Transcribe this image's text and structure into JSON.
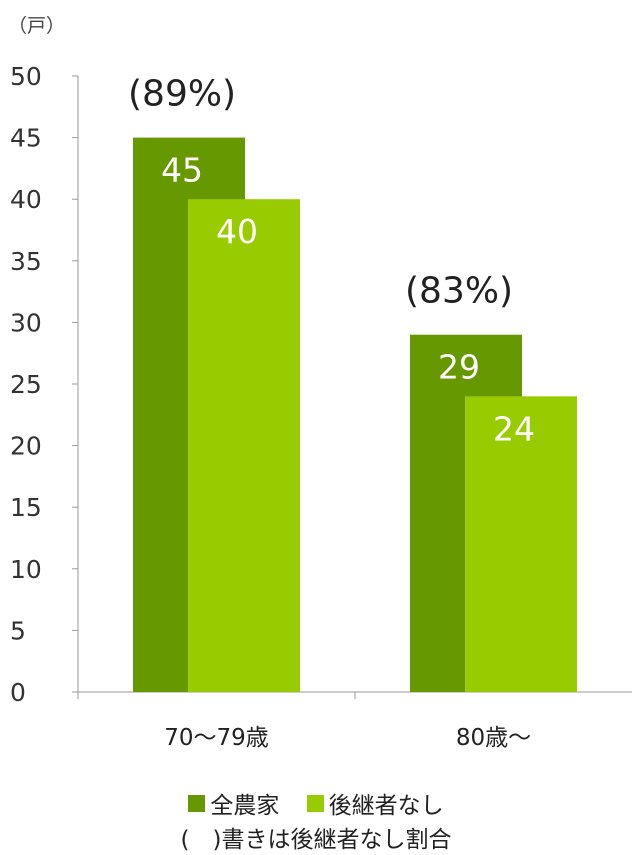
{
  "chart_data": {
    "type": "bar",
    "unit": "（戸）",
    "categories": [
      "70～79歳",
      "80歳～"
    ],
    "series": [
      {
        "name": "全農家",
        "values": [
          45,
          29
        ],
        "color": "#669900"
      },
      {
        "name": "後継者なし",
        "values": [
          40,
          24
        ],
        "color": "#99cc00"
      }
    ],
    "ratio_labels": [
      "(89%)",
      "(83%)"
    ],
    "ylim": [
      0,
      50
    ],
    "yticks": [
      0,
      5,
      10,
      15,
      20,
      25,
      30,
      35,
      40,
      45,
      50
    ],
    "note": "(　)書きは後継者なし割合",
    "grid": false,
    "legend_position": "bottom"
  }
}
